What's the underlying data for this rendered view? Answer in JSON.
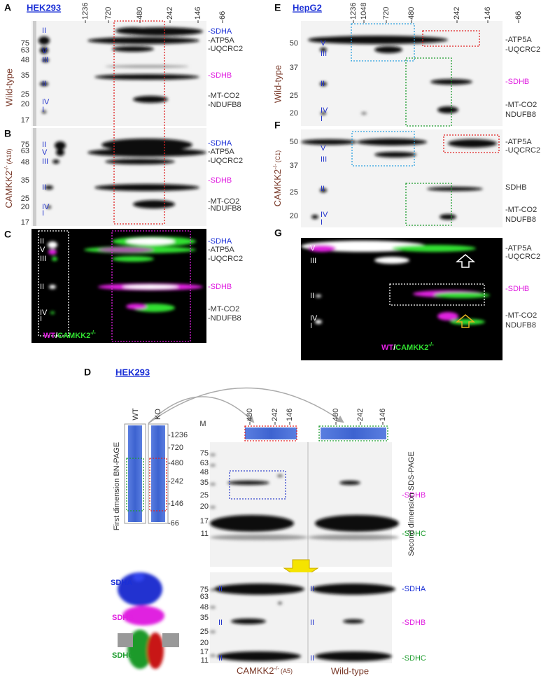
{
  "panel_a": {
    "letter": "A",
    "cell_line": "HEK293",
    "genotype": "Wild-type",
    "complex_sizes": [
      "1236",
      "720",
      "480",
      "242",
      "146",
      "66"
    ],
    "mw_markers": [
      "75",
      "63",
      "48",
      "35",
      "25",
      "20",
      "17"
    ],
    "complexes": [
      "II",
      "V",
      "III",
      "II",
      "IV",
      "I"
    ],
    "proteins": [
      "-SDHA",
      "-ATP5A",
      "-UQCRC2",
      "-SDHB",
      "-MT-CO2",
      "-NDUFB8"
    ]
  },
  "panel_b": {
    "letter": "B",
    "genotype": {
      "name": "CAMKK2",
      "sup": "-/-",
      "clone": "(A10)"
    },
    "mw_markers": [
      "75",
      "63",
      "48",
      "35",
      "25",
      "20",
      "17"
    ],
    "complexes": [
      "II",
      "V",
      "III",
      "II",
      "IV",
      "I"
    ],
    "proteins": [
      "-SDHA",
      "-ATP5A",
      "-UQCRC2",
      "-SDHB",
      "-MT-CO2",
      "-NDUFB8"
    ]
  },
  "panel_c": {
    "letter": "C",
    "complexes": [
      "II",
      "V",
      "III",
      "II",
      "IV",
      "I"
    ],
    "proteins": [
      "-SDHA",
      "-ATP5A",
      "-UQCRC2",
      "-SDHB",
      "-MT-CO2",
      "-NDUFB8"
    ],
    "legend": {
      "wt": "WT",
      "sep": "/",
      "ko": "CAMKK2",
      "sup": "-/-"
    }
  },
  "panel_e": {
    "letter": "E",
    "cell_line": "HepG2",
    "genotype": "Wild-type",
    "complex_sizes": [
      "1236",
      "1048",
      "720",
      "480",
      "242",
      "146",
      "66"
    ],
    "mw_markers": [
      "50",
      "37",
      "25",
      "20"
    ],
    "complexes": [
      "V",
      "III",
      "II",
      "IV",
      "I"
    ],
    "proteins": [
      "-ATP5A",
      "-UQCRC2",
      "-SDHB",
      "-MT-CO2",
      "NDUFB8"
    ]
  },
  "panel_f": {
    "letter": "F",
    "genotype": {
      "name": "CAMKK2",
      "sup": "-/-",
      "clone": "(C1)"
    },
    "mw_markers": [
      "50",
      "37",
      "25",
      "20"
    ],
    "complexes": [
      "V",
      "III",
      "II",
      "IV",
      "I"
    ],
    "proteins": [
      "-ATP5A",
      "-UQCRC2",
      "SDHB",
      "-MT-CO2",
      "NDUFB8"
    ]
  },
  "panel_g": {
    "letter": "G",
    "complexes": [
      "V",
      "III",
      "II",
      "IV",
      "I"
    ],
    "proteins": [
      "-ATP5A",
      "-UQCRC2",
      "-SDHB",
      "-MT-CO2",
      "NDUFB8"
    ],
    "legend": {
      "wt": "WT",
      "sep": "/",
      "ko": "CAMKK2",
      "sup": "-/-"
    }
  },
  "panel_d": {
    "letter": "D",
    "cell_line": "HEK293",
    "lanes": [
      "WT",
      "KO"
    ],
    "bn_sizes": [
      "-1236",
      "-720",
      "-480",
      "-242",
      "-146",
      "-66"
    ],
    "first_dimension": "First dimension BN-PAGE",
    "marker_lane": "M",
    "top_sizes": [
      "480",
      "242",
      "146",
      "480",
      "242",
      "146"
    ],
    "mw_top": [
      "75",
      "63",
      "48",
      "35",
      "25",
      "20",
      "17",
      "11"
    ],
    "proteins_top": [
      "-SDHB",
      "-SDHC"
    ],
    "second_dimension": "Second dimension SDS-PAGE",
    "mw_bottom": [
      "75",
      "63",
      "48",
      "35",
      "25",
      "20",
      "17",
      "11"
    ],
    "complexes_ko": [
      "II",
      "II",
      "II"
    ],
    "complexes_wt": [
      "II",
      "II",
      "II"
    ],
    "proteins_bottom": [
      "-SDHA",
      "-SDHB",
      "-SDHC"
    ],
    "structure_labels": [
      "SDHA",
      "SDHB",
      "SDHC"
    ],
    "ko_caption": {
      "name": "CAMKK2",
      "sup": "-/-",
      "clone": "(A5)"
    },
    "wt_caption": "Wild-type"
  }
}
